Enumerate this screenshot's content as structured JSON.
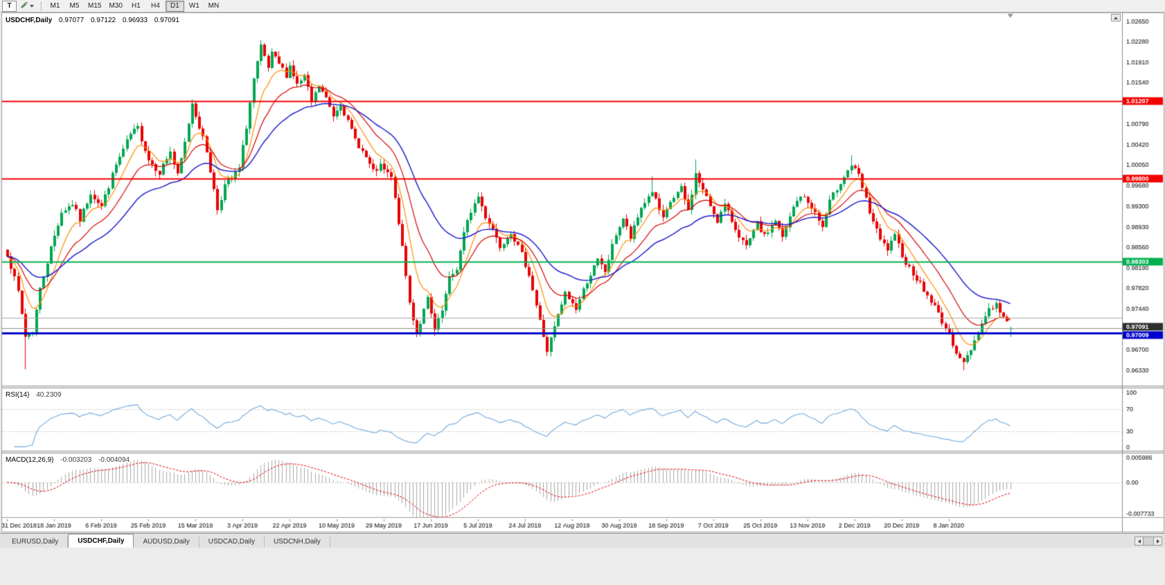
{
  "toolbar": {
    "template_button": "T",
    "timeframes": [
      "M1",
      "M5",
      "M15",
      "M30",
      "H1",
      "H4",
      "D1",
      "W1",
      "MN"
    ],
    "active_timeframe": "D1"
  },
  "chart": {
    "title": "USDCHF,Daily",
    "ohlc": {
      "open": "0.97077",
      "high": "0.97122",
      "low": "0.96933",
      "close": "0.97091"
    }
  },
  "rsi": {
    "label": "RSI(14)",
    "value": "40.2309",
    "axis_labels": [
      "100",
      "70",
      "30",
      "0"
    ],
    "axis_values": [
      100,
      70,
      30,
      0
    ],
    "level_lines": [
      70,
      30
    ],
    "line_color": "#6FA8DC"
  },
  "macd": {
    "label": "MACD(12,26,9)",
    "value_main": "-0.003203",
    "value_signal": "-0.004094",
    "axis_labels": [
      "0.005986",
      "0.00",
      "-0.007733"
    ],
    "axis_values": [
      0.005986,
      0,
      -0.007733
    ],
    "histogram_color": "#a8a8a8",
    "signal_color": "#e00000"
  },
  "tabs": [
    {
      "label": "EURUSD,Daily",
      "active": false
    },
    {
      "label": "USDCHF,Daily",
      "active": true
    },
    {
      "label": "AUDUSD,Daily",
      "active": false
    },
    {
      "label": "USDCAD,Daily",
      "active": false
    },
    {
      "label": "USDCNH,Daily",
      "active": false
    }
  ],
  "chart_data": {
    "type": "candlestick",
    "symbol": "USDCHF",
    "timeframe": "Daily",
    "bars": 278,
    "seed": 7,
    "noise": 0.0011,
    "wick": 0.001,
    "y_axis": {
      "top": 1.028,
      "bottom": 0.96054,
      "ticks": [
        "1.02650",
        "1.02280",
        "1.01910",
        "1.01540",
        "1.00790",
        "1.00420",
        "1.00050",
        "0.99680",
        "0.99300",
        "0.98930",
        "0.98560",
        "0.98190",
        "0.97820",
        "0.97440",
        "0.96700",
        "0.96330"
      ]
    },
    "x_axis": {
      "bars_per_label": 13,
      "labels": [
        "31 Dec 2018",
        "18 Jan 2019",
        "6 Feb 2019",
        "25 Feb 2019",
        "15 Mar 2019",
        "3 Apr 2019",
        "22 Apr 2019",
        "10 May 2019",
        "29 May 2019",
        "17 Jun 2019",
        "5 Jul 2019",
        "24 Jul 2019",
        "12 Aug 2019",
        "30 Aug 2019",
        "18 Sep 2019",
        "7 Oct 2019",
        "25 Oct 2019",
        "13 Nov 2019",
        "2 Dec 2019",
        "20 Dec 2019",
        "8 Jan 2020"
      ]
    },
    "levels": [
      {
        "value": 1.01207,
        "label": "1.01207",
        "color": "#F40000",
        "width": 2
      },
      {
        "value": 0.998,
        "label": "0.99800",
        "color": "#F40000",
        "width": 2
      },
      {
        "value": 0.98303,
        "label": "0.98303",
        "color": "#00B050",
        "width": 2
      },
      {
        "value": 0.9728,
        "label": "",
        "color": "#A6A6A6",
        "width": 1
      },
      {
        "value": 0.97009,
        "label": "0.97009",
        "color": "#0000CC",
        "width": 3
      }
    ],
    "current_price": {
      "value": 0.97091,
      "label": "0.97091",
      "badge_color": "#2E2E2E",
      "line_color": "#909090"
    },
    "candles": {
      "up_color": "#00A651",
      "down_color": "#E80000"
    },
    "moving_averages": [
      {
        "type": "ema",
        "period": 8,
        "color": "#FF8C00"
      },
      {
        "type": "ema",
        "period": 17,
        "color": "#D40000"
      },
      {
        "type": "ema",
        "period": 34,
        "color": "#2020CC"
      }
    ],
    "anchors": [
      [
        0,
        0.9845
      ],
      [
        3,
        0.9775
      ],
      [
        5,
        0.9695
      ],
      [
        7,
        0.9705
      ],
      [
        9,
        0.978
      ],
      [
        12,
        0.9855
      ],
      [
        15,
        0.992
      ],
      [
        18,
        0.9935
      ],
      [
        20,
        0.9905
      ],
      [
        23,
        0.9955
      ],
      [
        26,
        0.993
      ],
      [
        30,
        1.0005
      ],
      [
        34,
        1.006
      ],
      [
        36,
        1.0072
      ],
      [
        39,
        1.0015
      ],
      [
        42,
        0.9992
      ],
      [
        45,
        1.003
      ],
      [
        47,
        0.9985
      ],
      [
        49,
        1.0045
      ],
      [
        51,
        1.0118
      ],
      [
        53,
        1.0075
      ],
      [
        55,
        1.003
      ],
      [
        58,
        0.9925
      ],
      [
        60,
        0.9968
      ],
      [
        62,
        0.998
      ],
      [
        64,
        0.9998
      ],
      [
        66,
        1.0075
      ],
      [
        68,
        1.016
      ],
      [
        70,
        1.0218
      ],
      [
        72,
        1.018
      ],
      [
        73,
        1.0205
      ],
      [
        75,
        1.0188
      ],
      [
        77,
        1.0168
      ],
      [
        78,
        1.0185
      ],
      [
        80,
        1.015
      ],
      [
        82,
        1.0165
      ],
      [
        84,
        1.0118
      ],
      [
        86,
        1.0148
      ],
      [
        88,
        1.0125
      ],
      [
        90,
        1.0095
      ],
      [
        92,
        1.0118
      ],
      [
        94,
        1.0082
      ],
      [
        96,
        1.0052
      ],
      [
        99,
        1.0018
      ],
      [
        101,
        0.9992
      ],
      [
        103,
        1.0002
      ],
      [
        106,
        0.9982
      ],
      [
        108,
        0.9902
      ],
      [
        111,
        0.9755
      ],
      [
        113,
        0.97
      ],
      [
        116,
        0.9762
      ],
      [
        118,
        0.9705
      ],
      [
        120,
        0.974
      ],
      [
        122,
        0.9798
      ],
      [
        124,
        0.9818
      ],
      [
        126,
        0.988
      ],
      [
        128,
        0.9922
      ],
      [
        130,
        0.9948
      ],
      [
        132,
        0.9912
      ],
      [
        134,
        0.989
      ],
      [
        136,
        0.9858
      ],
      [
        139,
        0.9885
      ],
      [
        142,
        0.9842
      ],
      [
        144,
        0.9808
      ],
      [
        147,
        0.9722
      ],
      [
        149,
        0.9668
      ],
      [
        152,
        0.9732
      ],
      [
        154,
        0.9772
      ],
      [
        157,
        0.9745
      ],
      [
        160,
        0.9795
      ],
      [
        163,
        0.9832
      ],
      [
        165,
        0.9812
      ],
      [
        168,
        0.988
      ],
      [
        170,
        0.9908
      ],
      [
        172,
        0.9872
      ],
      [
        175,
        0.9928
      ],
      [
        178,
        0.9958
      ],
      [
        181,
        0.9905
      ],
      [
        183,
        0.9938
      ],
      [
        186,
        0.9962
      ],
      [
        188,
        0.9922
      ],
      [
        190,
        0.9988
      ],
      [
        193,
        0.9945
      ],
      [
        196,
        0.9905
      ],
      [
        198,
        0.9932
      ],
      [
        201,
        0.989
      ],
      [
        204,
        0.9855
      ],
      [
        207,
        0.9898
      ],
      [
        209,
        0.9875
      ],
      [
        212,
        0.9905
      ],
      [
        214,
        0.9872
      ],
      [
        217,
        0.9928
      ],
      [
        219,
        0.995
      ],
      [
        222,
        0.993
      ],
      [
        225,
        0.9892
      ],
      [
        227,
        0.9938
      ],
      [
        230,
        0.9975
      ],
      [
        233,
        1.0005
      ],
      [
        235,
        0.9985
      ],
      [
        238,
        0.992
      ],
      [
        241,
        0.9868
      ],
      [
        243,
        0.9852
      ],
      [
        245,
        0.9875
      ],
      [
        248,
        0.9828
      ],
      [
        251,
        0.98
      ],
      [
        253,
        0.9778
      ],
      [
        256,
        0.9748
      ],
      [
        259,
        0.971
      ],
      [
        262,
        0.9668
      ],
      [
        264,
        0.9645
      ],
      [
        266,
        0.9672
      ],
      [
        269,
        0.9718
      ],
      [
        271,
        0.9745
      ],
      [
        273,
        0.9752
      ],
      [
        275,
        0.9728
      ],
      [
        277,
        0.97091
      ]
    ],
    "specials": {
      "5": {
        "low": 0.9635
      },
      "51": {
        "high": 1.0124
      },
      "70": {
        "high": 1.0231
      },
      "113": {
        "low": 0.9693
      },
      "118": {
        "low": 0.9695
      },
      "149": {
        "low": 0.9659
      },
      "178": {
        "high": 0.9985
      },
      "190": {
        "high": 1.0015
      },
      "233": {
        "high": 1.0023
      },
      "264": {
        "low": 0.9633
      }
    },
    "last_bar": {
      "open": 0.97077,
      "high": 0.97122,
      "low": 0.96933,
      "close": 0.97091
    },
    "rsi_value": 40.2309,
    "macd_values": [
      -0.003203,
      -0.004094
    ]
  }
}
